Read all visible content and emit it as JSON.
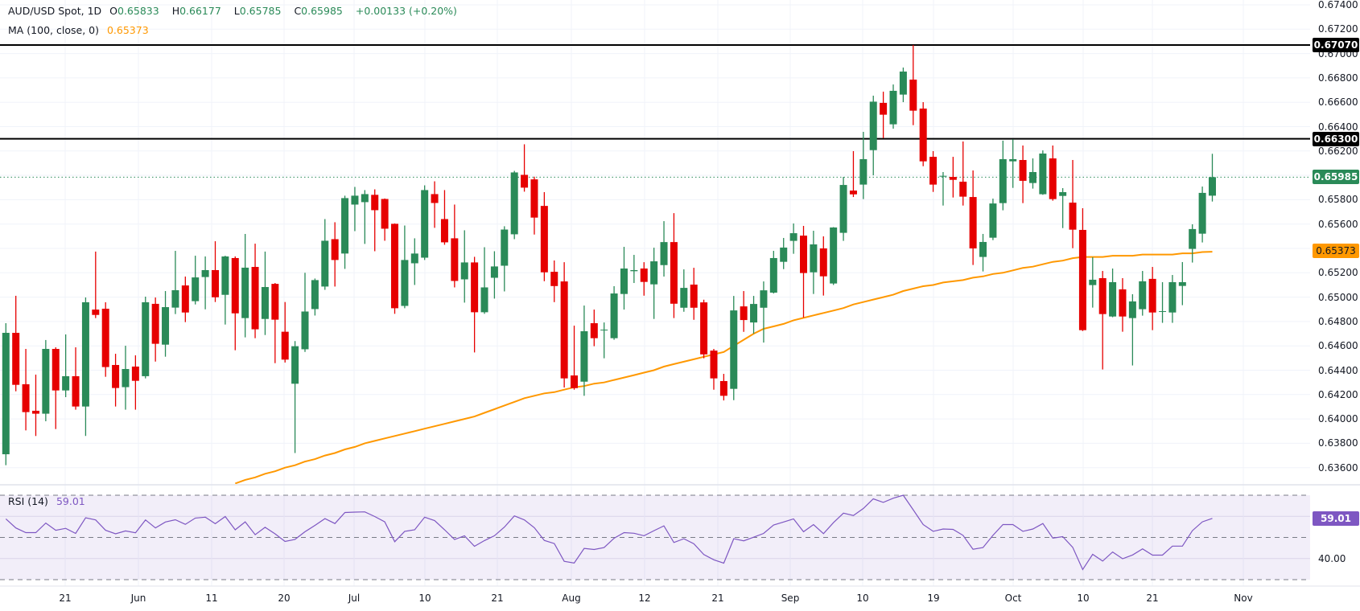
{
  "legend": {
    "symbol": "AUD/USD Spot, 1D",
    "o_label": "O",
    "o": "0.65833",
    "h_label": "H",
    "h": "0.66177",
    "l_label": "L",
    "l": "0.65785",
    "c_label": "C",
    "c": "0.65985",
    "change": "+0.00133 (+0.20%)",
    "ma_label": "MA (100, close, 0)",
    "ma_value": "0.65373",
    "rsi_label": "RSI (14)",
    "rsi_value": "59.01"
  },
  "price_axis": {
    "ticks": [
      "0.67400",
      "0.67200",
      "0.67000",
      "0.66800",
      "0.66600",
      "0.66400",
      "0.66200",
      "0.65800",
      "0.65600",
      "0.65200",
      "0.65000",
      "0.64800",
      "0.64600",
      "0.64400",
      "0.64200",
      "0.64000",
      "0.63800",
      "0.63600"
    ],
    "tags": {
      "resistance_high": "0.67070",
      "resistance_mid": "0.66300",
      "last_price": "0.65985",
      "ma": "0.65373"
    }
  },
  "rsi_axis": {
    "tick": "40.00",
    "tag": "59.01"
  },
  "time_axis": {
    "labels": [
      "21",
      "Jun",
      "11",
      "20",
      "Jul",
      "10",
      "21",
      "Aug",
      "12",
      "21",
      "Sep",
      "10",
      "19",
      "Oct",
      "10",
      "21",
      "Nov"
    ]
  },
  "colors": {
    "up": "#2a8a58",
    "down": "#e60000",
    "ma": "#ff9800",
    "rsi": "#7e57c2",
    "level_line": "#000000"
  },
  "chart_data": {
    "type": "candlestick",
    "symbol": "AUD/USD Spot",
    "interval": "1D",
    "ylim": [
      0.636,
      0.674
    ],
    "grid": true,
    "horizontal_levels": [
      0.6707,
      0.663
    ],
    "last_price": 0.65985,
    "ohlc_fields": [
      "open",
      "high",
      "low",
      "close"
    ],
    "candles": [
      [
        0.6371,
        0.64786,
        0.6362,
        0.64707
      ],
      [
        0.64707,
        0.65011,
        0.64227,
        0.6428
      ],
      [
        0.64285,
        0.64575,
        0.63906,
        0.64056
      ],
      [
        0.64067,
        0.64364,
        0.6386,
        0.64043
      ],
      [
        0.64043,
        0.64648,
        0.63981,
        0.64575
      ],
      [
        0.64575,
        0.64588,
        0.63917,
        0.64234
      ],
      [
        0.64234,
        0.64694,
        0.64179,
        0.64351
      ],
      [
        0.64351,
        0.64588,
        0.64076,
        0.64102
      ],
      [
        0.64102,
        0.64997,
        0.6386,
        0.64958
      ],
      [
        0.64898,
        0.65374,
        0.64828,
        0.64854
      ],
      [
        0.64905,
        0.64958,
        0.64346,
        0.64426
      ],
      [
        0.64443,
        0.64535,
        0.64102,
        0.64254
      ],
      [
        0.64261,
        0.64601,
        0.64076,
        0.6441
      ],
      [
        0.6443,
        0.64522,
        0.64076,
        0.64313
      ],
      [
        0.64351,
        0.65004,
        0.64333,
        0.64958
      ],
      [
        0.64945,
        0.64997,
        0.64471,
        0.64617
      ],
      [
        0.6461,
        0.6505,
        0.64511,
        0.64918
      ],
      [
        0.64914,
        0.6538,
        0.64861,
        0.65057
      ],
      [
        0.65096,
        0.65169,
        0.64795,
        0.64874
      ],
      [
        0.64967,
        0.6534,
        0.6494,
        0.65162
      ],
      [
        0.65165,
        0.65334,
        0.649,
        0.65222
      ],
      [
        0.65222,
        0.65459,
        0.6496,
        0.64999
      ],
      [
        0.65019,
        0.6534,
        0.64775,
        0.65334
      ],
      [
        0.65321,
        0.65334,
        0.64564,
        0.64867
      ],
      [
        0.64828,
        0.65519,
        0.6467,
        0.65242
      ],
      [
        0.65248,
        0.65439,
        0.64663,
        0.64736
      ],
      [
        0.64821,
        0.65374,
        0.64689,
        0.65083
      ],
      [
        0.65109,
        0.65116,
        0.64458,
        0.64815
      ],
      [
        0.64716,
        0.6496,
        0.64463,
        0.64487
      ],
      [
        0.64289,
        0.64639,
        0.6372,
        0.64597
      ],
      [
        0.64572,
        0.652,
        0.6455,
        0.64882
      ],
      [
        0.64902,
        0.65153,
        0.64849,
        0.6514
      ],
      [
        0.65087,
        0.65641,
        0.6506,
        0.65463
      ],
      [
        0.65476,
        0.65615,
        0.65087,
        0.65305
      ],
      [
        0.65358,
        0.65833,
        0.65232,
        0.65813
      ],
      [
        0.6576,
        0.65905,
        0.65542,
        0.65833
      ],
      [
        0.6578,
        0.65879,
        0.65437,
        0.65846
      ],
      [
        0.6584,
        0.65885,
        0.65377,
        0.65714
      ],
      [
        0.65806,
        0.6581,
        0.65463,
        0.65562
      ],
      [
        0.65602,
        0.65605,
        0.64863,
        0.64909
      ],
      [
        0.64928,
        0.65588,
        0.64909,
        0.65305
      ],
      [
        0.65278,
        0.65483,
        0.651,
        0.65358
      ],
      [
        0.65324,
        0.65918,
        0.65305,
        0.65879
      ],
      [
        0.65846,
        0.65951,
        0.65569,
        0.65773
      ],
      [
        0.65641,
        0.65879,
        0.6543,
        0.6545
      ],
      [
        0.65483,
        0.6576,
        0.6508,
        0.65133
      ],
      [
        0.65146,
        0.65549,
        0.64955,
        0.65285
      ],
      [
        0.65285,
        0.65331,
        0.64546,
        0.64876
      ],
      [
        0.64876,
        0.6541,
        0.64863,
        0.6508
      ],
      [
        0.65159,
        0.65377,
        0.64988,
        0.65252
      ],
      [
        0.65258,
        0.65582,
        0.65047,
        0.65555
      ],
      [
        0.65516,
        0.66037,
        0.65476,
        0.66024
      ],
      [
        0.66004,
        0.66255,
        0.65866,
        0.65899
      ],
      [
        0.65967,
        0.65989,
        0.65514,
        0.65653
      ],
      [
        0.65749,
        0.65862,
        0.65131,
        0.65204
      ],
      [
        0.65208,
        0.65301,
        0.64959,
        0.65091
      ],
      [
        0.65129,
        0.65287,
        0.64258,
        0.64333
      ],
      [
        0.64357,
        0.64766,
        0.6424,
        0.64253
      ],
      [
        0.64306,
        0.64931,
        0.6419,
        0.6472
      ],
      [
        0.64786,
        0.64898,
        0.64597,
        0.64663
      ],
      [
        0.64729,
        0.64792,
        0.64498,
        0.64733
      ],
      [
        0.64663,
        0.6509,
        0.6465,
        0.6503
      ],
      [
        0.65026,
        0.65413,
        0.64898,
        0.65235
      ],
      [
        0.65213,
        0.65347,
        0.65116,
        0.65222
      ],
      [
        0.65235,
        0.65287,
        0.65012,
        0.65125
      ],
      [
        0.65105,
        0.65406,
        0.64821,
        0.65294
      ],
      [
        0.65263,
        0.65624,
        0.65169,
        0.65452
      ],
      [
        0.65452,
        0.6569,
        0.64828,
        0.64946
      ],
      [
        0.64913,
        0.65228,
        0.6488,
        0.65076
      ],
      [
        0.65103,
        0.65241,
        0.64814,
        0.64913
      ],
      [
        0.64957,
        0.64979,
        0.64498,
        0.6453
      ],
      [
        0.64561,
        0.64575,
        0.6424,
        0.64333
      ],
      [
        0.64311,
        0.6437,
        0.64152,
        0.6419
      ],
      [
        0.64247,
        0.6501,
        0.64154,
        0.64891
      ],
      [
        0.64924,
        0.6505,
        0.64715,
        0.64812
      ],
      [
        0.64792,
        0.6501,
        0.647,
        0.64944
      ],
      [
        0.64913,
        0.65129,
        0.64627,
        0.65056
      ],
      [
        0.65037,
        0.6538,
        0.6503,
        0.65321
      ],
      [
        0.6529,
        0.65486,
        0.6523,
        0.65407
      ],
      [
        0.65462,
        0.65605,
        0.65356,
        0.65525
      ],
      [
        0.65505,
        0.65585,
        0.64832,
        0.65198
      ],
      [
        0.65204,
        0.65545,
        0.65026,
        0.65433
      ],
      [
        0.654,
        0.65499,
        0.65013,
        0.65171
      ],
      [
        0.65112,
        0.65575,
        0.651,
        0.65572
      ],
      [
        0.65528,
        0.65987,
        0.65462,
        0.65921
      ],
      [
        0.65875,
        0.66199,
        0.65822,
        0.65844
      ],
      [
        0.65924,
        0.66357,
        0.65805,
        0.66133
      ],
      [
        0.66207,
        0.66654,
        0.66,
        0.66605
      ],
      [
        0.66595,
        0.66687,
        0.66306,
        0.66498
      ],
      [
        0.66419,
        0.66746,
        0.66383,
        0.66694
      ],
      [
        0.66663,
        0.66885,
        0.66601,
        0.66852
      ],
      [
        0.66786,
        0.6707,
        0.66412,
        0.66531
      ],
      [
        0.66548,
        0.66601,
        0.66075,
        0.66115
      ],
      [
        0.66152,
        0.66199,
        0.65864,
        0.65924
      ],
      [
        0.6599,
        0.66027,
        0.65752,
        0.65996
      ],
      [
        0.65987,
        0.66152,
        0.65818,
        0.65963
      ],
      [
        0.65948,
        0.66278,
        0.65752,
        0.65825
      ],
      [
        0.65822,
        0.6604,
        0.65264,
        0.654
      ],
      [
        0.6533,
        0.65519,
        0.65211,
        0.65453
      ],
      [
        0.65488,
        0.65809,
        0.65468,
        0.65769
      ],
      [
        0.65772,
        0.66285,
        0.65713,
        0.66133
      ],
      [
        0.66115,
        0.66296,
        0.65897,
        0.66133
      ],
      [
        0.66126,
        0.66245,
        0.65772,
        0.65955
      ],
      [
        0.65937,
        0.66139,
        0.65891,
        0.66027
      ],
      [
        0.65845,
        0.66205,
        0.6584,
        0.66179
      ],
      [
        0.66139,
        0.66245,
        0.65792,
        0.65805
      ],
      [
        0.65831,
        0.65895,
        0.65567,
        0.65862
      ],
      [
        0.65776,
        0.66126,
        0.65402,
        0.65554
      ],
      [
        0.65552,
        0.6573,
        0.64722,
        0.64729
      ],
      [
        0.65099,
        0.65328,
        0.64914,
        0.65143
      ],
      [
        0.65156,
        0.65215,
        0.64406,
        0.64861
      ],
      [
        0.64841,
        0.65235,
        0.64835,
        0.65123
      ],
      [
        0.65064,
        0.65156,
        0.64716,
        0.64841
      ],
      [
        0.64828,
        0.65024,
        0.64439,
        0.64965
      ],
      [
        0.64901,
        0.65215,
        0.64848,
        0.6513
      ],
      [
        0.6515,
        0.65248,
        0.64729,
        0.64874
      ],
      [
        0.64881,
        0.65123,
        0.64789,
        0.64885
      ],
      [
        0.64874,
        0.65182,
        0.64789,
        0.65123
      ],
      [
        0.65092,
        0.65288,
        0.64934,
        0.65123
      ],
      [
        0.65396,
        0.65598,
        0.65284,
        0.65559
      ],
      [
        0.65521,
        0.65908,
        0.65449,
        0.65856
      ],
      [
        0.65833,
        0.66177,
        0.65785,
        0.65985
      ]
    ],
    "ma100": [
      null,
      null,
      null,
      null,
      null,
      null,
      null,
      null,
      null,
      null,
      null,
      null,
      null,
      null,
      null,
      null,
      null,
      null,
      null,
      null,
      null,
      null,
      null,
      0.6347,
      0.635,
      0.6352,
      0.6355,
      0.6357,
      0.636,
      0.6362,
      0.6365,
      0.6367,
      0.637,
      0.6372,
      0.6375,
      0.6377,
      0.638,
      0.6382,
      0.6384,
      0.6386,
      0.6388,
      0.639,
      0.6392,
      0.6394,
      0.6396,
      0.6398,
      0.64,
      0.6402,
      0.6405,
      0.6408,
      0.6411,
      0.6414,
      0.6417,
      0.6419,
      0.6421,
      0.6422,
      0.6424,
      0.6426,
      0.6427,
      0.6429,
      0.643,
      0.6432,
      0.6434,
      0.6436,
      0.6438,
      0.644,
      0.6443,
      0.6445,
      0.6447,
      0.6449,
      0.6451,
      0.6453,
      0.6455,
      0.646,
      0.6465,
      0.647,
      0.6474,
      0.6476,
      0.6478,
      0.6481,
      0.6483,
      0.6485,
      0.6487,
      0.6489,
      0.6491,
      0.6494,
      0.6496,
      0.6498,
      0.65,
      0.6502,
      0.6505,
      0.6507,
      0.6509,
      0.651,
      0.6512,
      0.6513,
      0.6514,
      0.6516,
      0.6517,
      0.6519,
      0.652,
      0.6522,
      0.6524,
      0.6525,
      0.6527,
      0.6529,
      0.653,
      0.6532,
      0.6533,
      0.6533,
      0.6533,
      0.6534,
      0.6534,
      0.6534,
      0.6535,
      0.6535,
      0.6535,
      0.6535,
      0.6536,
      0.6536,
      0.6537,
      0.65373
    ],
    "rsi_levels": [
      70,
      50,
      30
    ],
    "rsi14": [
      58.8,
      54.5,
      52.3,
      52.3,
      56.8,
      53.4,
      54.3,
      51.9,
      59.3,
      58.3,
      53.4,
      51.7,
      53.1,
      52.2,
      58.3,
      54.5,
      57.3,
      58.4,
      56.2,
      59.2,
      59.6,
      56.5,
      59.9,
      53.6,
      57.4,
      51.3,
      54.8,
      51.7,
      48.1,
      49.1,
      52.7,
      55.7,
      58.9,
      56.6,
      61.8,
      62.0,
      62.1,
      59.9,
      57.4,
      48.0,
      52.9,
      53.6,
      59.6,
      58.0,
      53.6,
      49.0,
      50.8,
      45.8,
      48.5,
      50.8,
      54.9,
      60.2,
      58.3,
      54.6,
      48.6,
      47.1,
      38.7,
      37.9,
      44.8,
      44.3,
      45.2,
      49.6,
      52.3,
      52.0,
      50.8,
      53.2,
      55.5,
      47.6,
      49.4,
      47.0,
      41.9,
      39.4,
      37.8,
      49.4,
      48.4,
      50.1,
      51.9,
      55.9,
      57.3,
      58.8,
      52.7,
      56.1,
      51.8,
      57.0,
      61.5,
      60.4,
      63.7,
      68.3,
      66.6,
      68.6,
      70.0,
      63.1,
      56.1,
      52.9,
      54.0,
      53.8,
      51.0,
      44.4,
      45.2,
      51.0,
      56.1,
      56.1,
      52.9,
      54.0,
      56.6,
      49.7,
      50.4,
      45.3,
      34.8,
      42.0,
      38.8,
      43.1,
      39.9,
      41.7,
      44.6,
      41.6,
      41.6,
      45.9,
      45.9,
      53.2,
      57.4,
      59.01
    ]
  }
}
